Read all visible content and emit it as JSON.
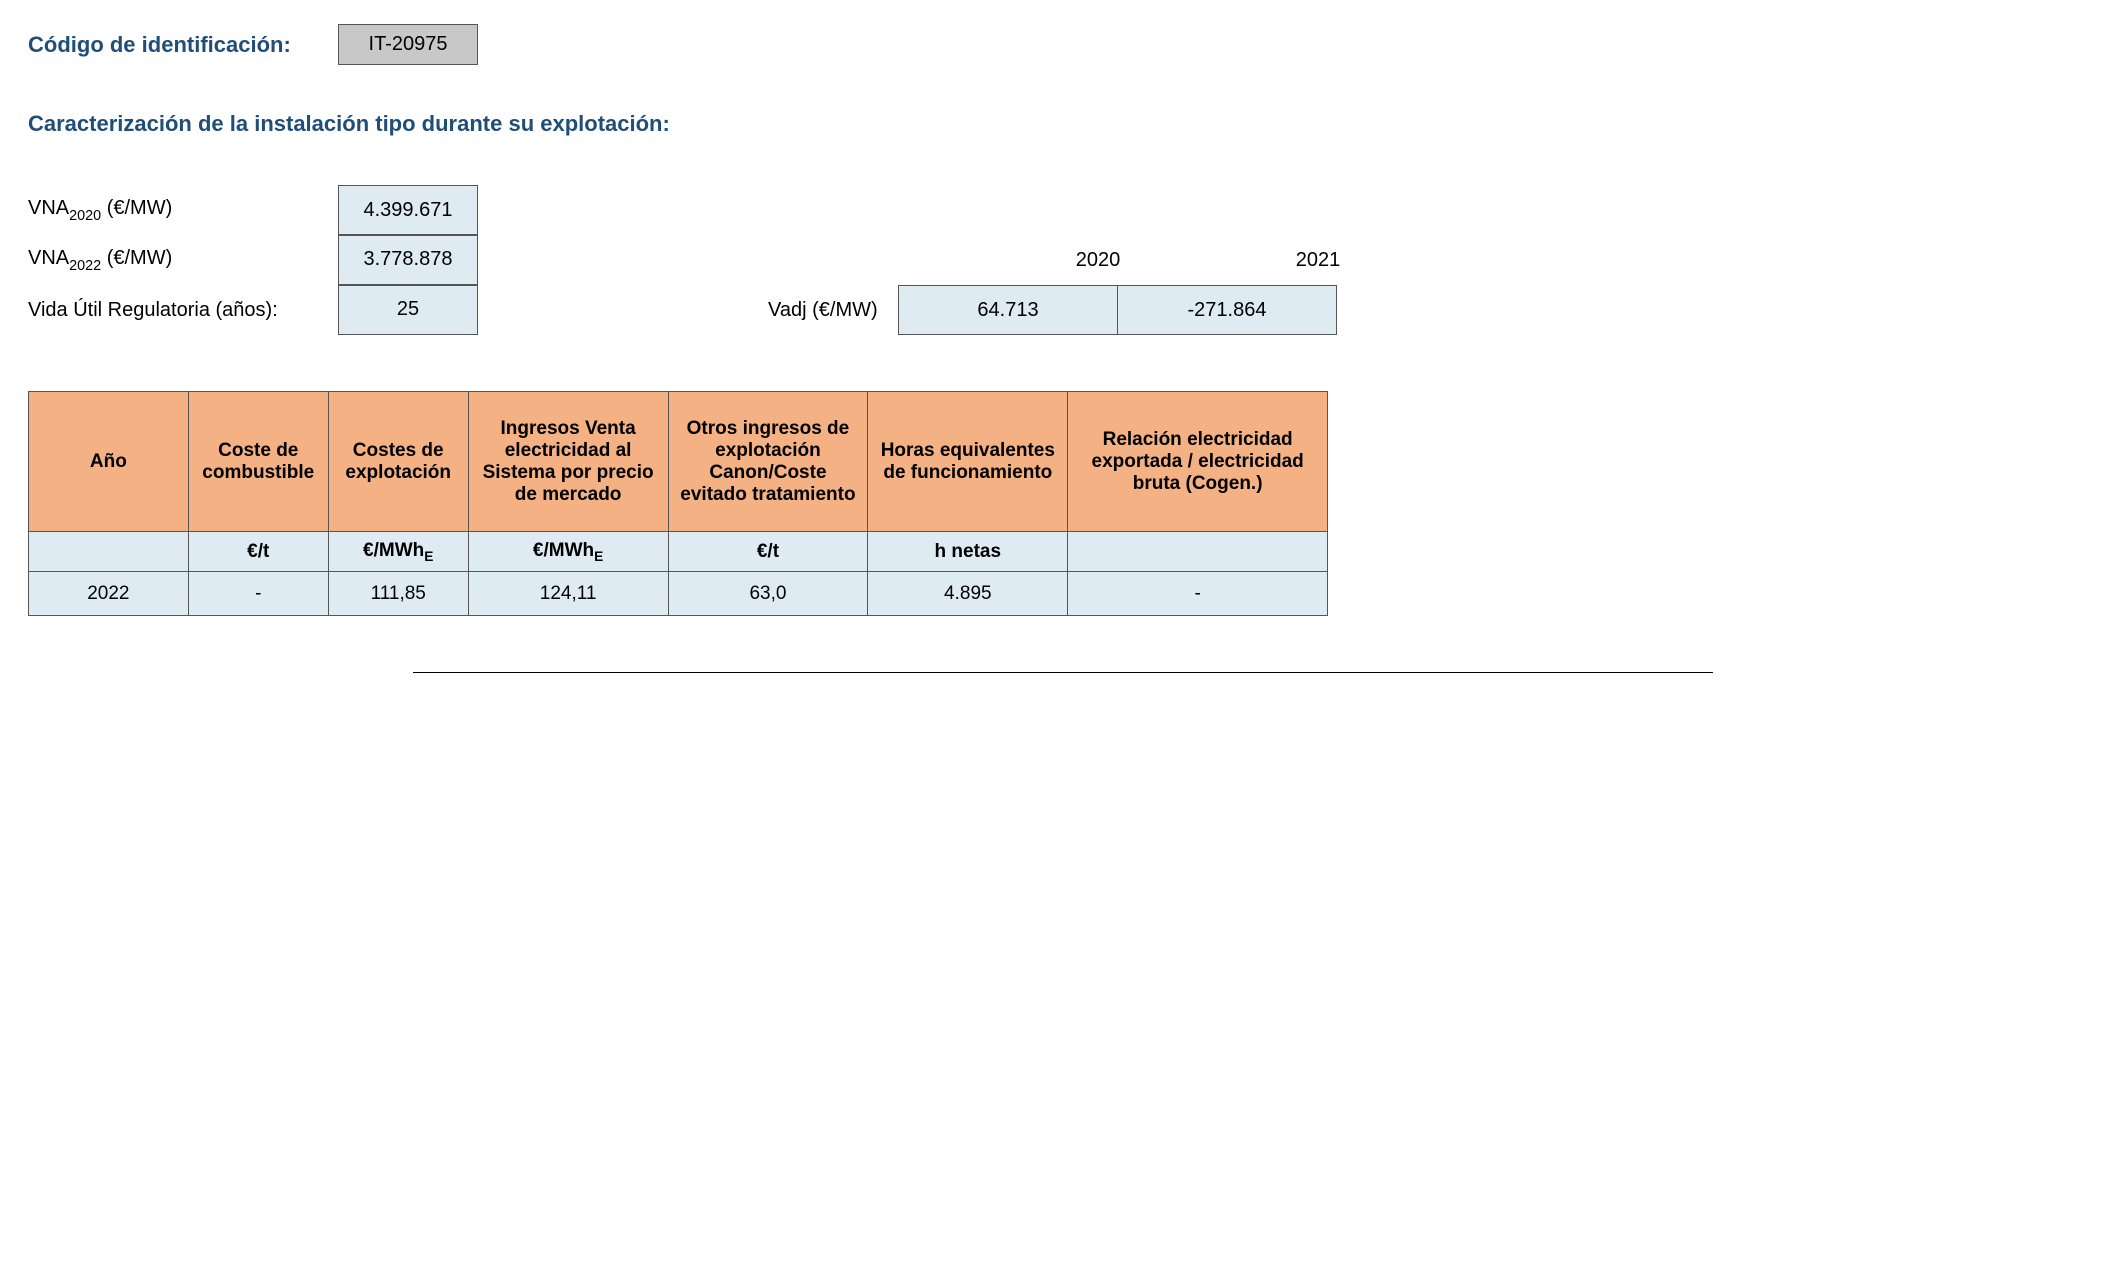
{
  "header": {
    "code_label": "Código de identificación:",
    "code_value": "IT-20975",
    "section_title": "Caracterización de la instalación tipo durante su explotación:"
  },
  "params": {
    "vna2020_label_prefix": "VNA",
    "vna2020_label_sub": "2020",
    "vna2020_label_suffix": " (€/MW)",
    "vna2020_value": "4.399.671",
    "vna2022_label_prefix": "VNA",
    "vna2022_label_sub": "2022",
    "vna2022_label_suffix": " (€/MW)",
    "vna2022_value": "3.778.878",
    "vida_label": "Vida Útil Regulatoria (años):",
    "vida_value": "25"
  },
  "vadj": {
    "label": "Vadj (€/MW)",
    "year1": "2020",
    "year2": "2021",
    "val1": "64.713",
    "val2": "-271.864"
  },
  "table": {
    "headers": {
      "ano": "Año",
      "combustible": "Coste de combustible",
      "explotacion": "Costes de explotación",
      "ingresos": "Ingresos Venta electricidad al Sistema por precio de mercado",
      "otros": "Otros ingresos de explotación Canon/Coste evitado tratamiento",
      "horas": "Horas equivalentes de funcionamiento",
      "relacion": "Relación electricidad exportada / electricidad bruta (Cogen.)"
    },
    "units": {
      "ano": "",
      "combustible": "€/t",
      "explotacion_prefix": "€/MWh",
      "explotacion_sub": "E",
      "ingresos_prefix": "€/MWh",
      "ingresos_sub": "E",
      "otros": "€/t",
      "horas": "h netas",
      "relacion": ""
    },
    "row": {
      "ano": "2022",
      "combustible": "-",
      "explotacion": "111,85",
      "ingresos": "124,11",
      "otros": "63,0",
      "horas": "4.895",
      "relacion": "-"
    }
  },
  "colors": {
    "heading": "#1f4e79",
    "header_bg": "#f4b183",
    "cell_bg": "#deebf2",
    "code_bg": "#c8c8c8",
    "border": "#555555"
  }
}
